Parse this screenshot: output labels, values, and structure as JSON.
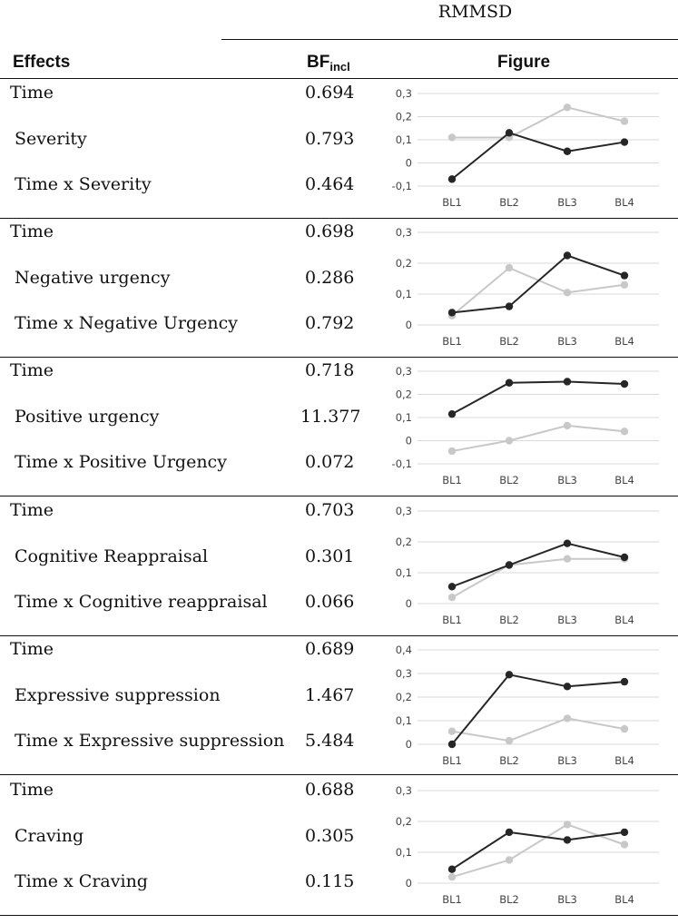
{
  "table": {
    "group_title": "RMMSD",
    "headers": {
      "effects": "Effects",
      "bf_main": "BF",
      "bf_sub": "incl",
      "figure": "Figure"
    },
    "blocks": [
      {
        "rows": [
          {
            "effect": "Time",
            "bf": "0.694"
          },
          {
            "effect": "Severity",
            "bf": "0.793"
          },
          {
            "effect": "Time x Severity",
            "bf": "0.464"
          }
        ]
      },
      {
        "rows": [
          {
            "effect": "Time",
            "bf": "0.698"
          },
          {
            "effect": "Negative urgency",
            "bf": "0.286"
          },
          {
            "effect": "Time x Negative Urgency",
            "bf": "0.792"
          }
        ]
      },
      {
        "rows": [
          {
            "effect": "Time",
            "bf": "0.718"
          },
          {
            "effect": "Positive urgency",
            "bf": "11.377"
          },
          {
            "effect": "Time x Positive Urgency",
            "bf": "0.072"
          }
        ]
      },
      {
        "rows": [
          {
            "effect": "Time",
            "bf": "0.703"
          },
          {
            "effect": "Cognitive Reappraisal",
            "bf": "0.301"
          },
          {
            "effect": "Time x Cognitive reappraisal",
            "bf": "0.066"
          }
        ]
      },
      {
        "rows": [
          {
            "effect": "Time",
            "bf": "0.689"
          },
          {
            "effect": "Expressive suppression",
            "bf": "1.467"
          },
          {
            "effect": "Time x Expressive suppression",
            "bf": "5.484"
          }
        ]
      },
      {
        "rows": [
          {
            "effect": "Time",
            "bf": "0.688"
          },
          {
            "effect": "Craving",
            "bf": "0.305"
          },
          {
            "effect": "Time x Craving",
            "bf": "0.115"
          }
        ]
      }
    ]
  },
  "colors": {
    "dark_series": "#262626",
    "light_series": "#c8c8c8",
    "grid": "#d9d9d9"
  },
  "chart_data": [
    {
      "type": "line",
      "categories": [
        "BL1",
        "BL2",
        "BL3",
        "BL4"
      ],
      "ylim": [
        -0.1,
        0.3
      ],
      "yticks": [
        "-0,1",
        "0",
        "0,1",
        "0,2",
        "0,3"
      ],
      "series": [
        {
          "name": "dark",
          "values": [
            -0.07,
            0.13,
            0.05,
            0.09
          ]
        },
        {
          "name": "light",
          "values": [
            0.11,
            0.11,
            0.24,
            0.18
          ]
        }
      ]
    },
    {
      "type": "line",
      "categories": [
        "BL1",
        "BL2",
        "BL3",
        "BL4"
      ],
      "ylim": [
        0,
        0.3
      ],
      "yticks": [
        "0",
        "0,1",
        "0,2",
        "0,3"
      ],
      "series": [
        {
          "name": "dark",
          "values": [
            0.04,
            0.06,
            0.225,
            0.16
          ]
        },
        {
          "name": "light",
          "values": [
            0.03,
            0.185,
            0.105,
            0.13
          ]
        }
      ]
    },
    {
      "type": "line",
      "categories": [
        "BL1",
        "BL2",
        "BL3",
        "BL4"
      ],
      "ylim": [
        -0.1,
        0.3
      ],
      "yticks": [
        "-0,1",
        "0",
        "0,1",
        "0,2",
        "0,3"
      ],
      "series": [
        {
          "name": "dark",
          "values": [
            0.115,
            0.25,
            0.255,
            0.245
          ]
        },
        {
          "name": "light",
          "values": [
            -0.045,
            0.0,
            0.065,
            0.04
          ]
        }
      ]
    },
    {
      "type": "line",
      "categories": [
        "BL1",
        "BL2",
        "BL3",
        "BL4"
      ],
      "ylim": [
        0,
        0.3
      ],
      "yticks": [
        "0",
        "0,1",
        "0,2",
        "0,3"
      ],
      "series": [
        {
          "name": "dark",
          "values": [
            0.055,
            0.125,
            0.195,
            0.15
          ]
        },
        {
          "name": "light",
          "values": [
            0.02,
            0.125,
            0.145,
            0.145
          ]
        }
      ]
    },
    {
      "type": "line",
      "categories": [
        "BL1",
        "BL2",
        "BL3",
        "BL4"
      ],
      "ylim": [
        0,
        0.4
      ],
      "yticks": [
        "0",
        "0,1",
        "0,2",
        "0,3",
        "0,4"
      ],
      "series": [
        {
          "name": "dark",
          "values": [
            0.0,
            0.295,
            0.245,
            0.265
          ]
        },
        {
          "name": "light",
          "values": [
            0.055,
            0.015,
            0.11,
            0.065
          ]
        }
      ]
    },
    {
      "type": "line",
      "categories": [
        "BL1",
        "BL2",
        "BL3",
        "BL4"
      ],
      "ylim": [
        0,
        0.3
      ],
      "yticks": [
        "0",
        "0,1",
        "0,2",
        "0,3"
      ],
      "series": [
        {
          "name": "dark",
          "values": [
            0.045,
            0.165,
            0.14,
            0.165
          ]
        },
        {
          "name": "light",
          "values": [
            0.02,
            0.075,
            0.19,
            0.125
          ]
        }
      ]
    }
  ]
}
